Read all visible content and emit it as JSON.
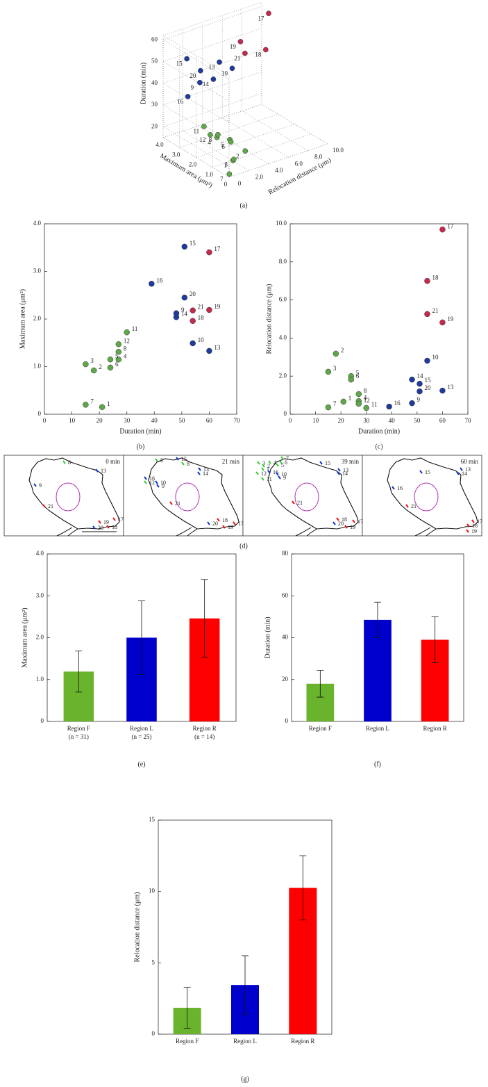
{
  "chart_data": [
    {
      "type": "scatter3d",
      "panel_label": "(a)",
      "xlabel": "Relocation distance (μm)",
      "ylabel": "Maximum area (μm²)",
      "zlabel": "Duration (min)",
      "labels": [
        "1",
        "2",
        "3",
        "4",
        "5",
        "6",
        "7",
        "8",
        "9",
        "10",
        "11",
        "12",
        "13",
        "14",
        "15",
        "16",
        "17",
        "18",
        "19",
        "20",
        "21"
      ],
      "x": [
        0.66,
        3.18,
        2.23,
        0.69,
        2.0,
        1.82,
        0.36,
        1.06,
        0.58,
        2.81,
        0.33,
        0.55,
        1.24,
        1.82,
        1.6,
        0.4,
        9.7,
        7.0,
        4.82,
        1.2,
        5.26
      ],
      "y": [
        0.15,
        0.92,
        1.05,
        1.15,
        1.15,
        0.98,
        0.2,
        1.31,
        2.12,
        1.49,
        1.72,
        1.47,
        1.33,
        2.04,
        3.52,
        2.74,
        3.4,
        1.96,
        2.19,
        2.45,
        2.18
      ],
      "z": [
        21,
        18,
        15,
        27,
        24,
        24,
        15,
        27,
        48,
        54,
        30,
        27,
        60,
        48,
        51,
        39,
        60,
        54,
        60,
        51,
        54
      ],
      "colors": [
        "#5fa84a",
        "#5fa84a",
        "#5fa84a",
        "#5fa84a",
        "#5fa84a",
        "#5fa84a",
        "#5fa84a",
        "#5fa84a",
        "#1f3c9c",
        "#1f3c9c",
        "#5fa84a",
        "#5fa84a",
        "#1f3c9c",
        "#1f3c9c",
        "#1f3c9c",
        "#1f3c9c",
        "#c42a4e",
        "#c42a4e",
        "#c42a4e",
        "#1f3c9c",
        "#c42a4e"
      ],
      "xlim": [
        0,
        10
      ],
      "xticks": [
        0,
        {
          "value": 2,
          "label": "2.0"
        },
        {
          "value": 4,
          "label": "4.0"
        },
        {
          "value": 6,
          "label": "6.0"
        },
        {
          "value": 8,
          "label": "8.0"
        },
        {
          "value": 10,
          "label": "10.0"
        }
      ],
      "ylim": [
        0,
        4
      ],
      "yticks": [
        0,
        {
          "value": 1,
          "label": "1.0"
        },
        {
          "value": 2,
          "label": "2.0"
        },
        {
          "value": 3,
          "label": "3.0"
        },
        {
          "value": 4,
          "label": "4.0"
        }
      ],
      "zlim": [
        15,
        62
      ],
      "zticks": [
        20,
        30,
        40,
        50,
        60
      ],
      "grid": true
    },
    {
      "type": "scatter",
      "panel_label": "(b)",
      "xlabel": "Duration (min)",
      "ylabel": "Maximum area (μm²)",
      "labels": [
        "1",
        "2",
        "3",
        "4",
        "5",
        "6",
        "7",
        "8",
        "9",
        "10",
        "11",
        "12",
        "13",
        "14",
        "15",
        "16",
        "17",
        "18",
        "19",
        "20",
        "21"
      ],
      "x": [
        21,
        18,
        15,
        27,
        24,
        24,
        15,
        27,
        48,
        54,
        30,
        27,
        60,
        48,
        51,
        39,
        60,
        54,
        60,
        51,
        54
      ],
      "y": [
        0.15,
        0.92,
        1.05,
        1.15,
        1.15,
        0.98,
        0.2,
        1.31,
        2.12,
        1.49,
        1.72,
        1.47,
        1.33,
        2.04,
        3.52,
        2.74,
        3.4,
        1.96,
        2.19,
        2.45,
        2.18
      ],
      "colors": [
        "#5fa84a",
        "#5fa84a",
        "#5fa84a",
        "#5fa84a",
        "#5fa84a",
        "#5fa84a",
        "#5fa84a",
        "#5fa84a",
        "#1f3c9c",
        "#1f3c9c",
        "#5fa84a",
        "#5fa84a",
        "#1f3c9c",
        "#1f3c9c",
        "#1f3c9c",
        "#1f3c9c",
        "#c42a4e",
        "#c42a4e",
        "#c42a4e",
        "#1f3c9c",
        "#c42a4e"
      ],
      "xlim": [
        0,
        70
      ],
      "xticks": [
        0,
        10,
        20,
        30,
        40,
        50,
        60,
        70
      ],
      "ylim": [
        0,
        4
      ],
      "yticks": [
        0,
        {
          "value": 1,
          "label": "1.0"
        },
        {
          "value": 2,
          "label": "2.0"
        },
        {
          "value": 3,
          "label": "3.0"
        },
        {
          "value": 4,
          "label": "4.0"
        }
      ]
    },
    {
      "type": "scatter",
      "panel_label": "(c)",
      "xlabel": "Duration (min)",
      "ylabel": "Relocation distance (μm)",
      "labels": [
        "1",
        "2",
        "3",
        "4",
        "5",
        "6",
        "7",
        "8",
        "9",
        "10",
        "11",
        "12",
        "13",
        "14",
        "15",
        "16",
        "17",
        "18",
        "19",
        "20",
        "21"
      ],
      "x": [
        21,
        18,
        15,
        27,
        24,
        24,
        15,
        27,
        48,
        54,
        30,
        27,
        60,
        48,
        51,
        39,
        60,
        54,
        60,
        51,
        54
      ],
      "y": [
        0.66,
        3.18,
        2.23,
        0.69,
        2.0,
        1.82,
        0.36,
        1.06,
        0.58,
        2.81,
        0.33,
        0.55,
        1.24,
        1.82,
        1.6,
        0.4,
        9.7,
        7.0,
        4.82,
        1.2,
        5.26
      ],
      "colors": [
        "#5fa84a",
        "#5fa84a",
        "#5fa84a",
        "#5fa84a",
        "#5fa84a",
        "#5fa84a",
        "#5fa84a",
        "#5fa84a",
        "#1f3c9c",
        "#1f3c9c",
        "#5fa84a",
        "#5fa84a",
        "#1f3c9c",
        "#1f3c9c",
        "#1f3c9c",
        "#1f3c9c",
        "#c42a4e",
        "#c42a4e",
        "#c42a4e",
        "#1f3c9c",
        "#c42a4e"
      ],
      "xlim": [
        0,
        70
      ],
      "xticks": [
        0,
        10,
        20,
        30,
        40,
        50,
        60,
        70
      ],
      "ylim": [
        0,
        10
      ],
      "yticks": [
        0,
        {
          "value": 2,
          "label": "2.0"
        },
        {
          "value": 4,
          "label": "4.0"
        },
        {
          "value": 6,
          "label": "6.0"
        },
        {
          "value": 8,
          "label": "8.0"
        },
        {
          "value": 10,
          "label": "10.0"
        }
      ]
    },
    {
      "type": "frames",
      "panel_label": "(d)",
      "frames": [
        {
          "time": "0 min",
          "labels": [
            "8",
            "13",
            "9",
            "21",
            "19",
            "17",
            "20",
            "18"
          ],
          "colors": [
            "#33cc33",
            "#1133cc",
            "#1133cc",
            "#ee1111",
            "#ee1111",
            "#ee1111",
            "#1133cc",
            "#ee1111"
          ]
        },
        {
          "time": "21 min",
          "labels": [
            "5",
            "15",
            "8",
            "16",
            "12",
            "10",
            "9",
            "13",
            "14",
            "21",
            "18",
            "20",
            "17",
            "19"
          ],
          "colors": [
            "#33cc33",
            "#1133cc",
            "#33cc33",
            "#1133cc",
            "#33cc33",
            "#1133cc",
            "#1133cc",
            "#1133cc",
            "#1133cc",
            "#ee1111",
            "#ee1111",
            "#1133cc",
            "#ee1111",
            "#ee1111"
          ]
        },
        {
          "time": "39 min",
          "labels": [
            "7",
            "6",
            "3",
            "4",
            "2",
            "5",
            "1",
            "16",
            "12",
            "10",
            "9",
            "11",
            "15",
            "13",
            "14",
            "21",
            "18",
            "17",
            "20",
            "19"
          ],
          "colors": [
            "#33cc33",
            "#33cc33",
            "#33cc33",
            "#33cc33",
            "#33cc33",
            "#33cc33",
            "#33cc33",
            "#1133cc",
            "#33cc33",
            "#1133cc",
            "#1133cc",
            "#33cc33",
            "#1133cc",
            "#1133cc",
            "#1133cc",
            "#ee1111",
            "#ee1111",
            "#ee1111",
            "#1133cc",
            "#ee1111"
          ]
        },
        {
          "time": "60 min",
          "labels": [
            "15",
            "16",
            "13",
            "14",
            "21",
            "17",
            "18",
            "19"
          ],
          "colors": [
            "#1133cc",
            "#1133cc",
            "#1133cc",
            "#1133cc",
            "#ee1111",
            "#ee1111",
            "#ee1111",
            "#ee1111"
          ]
        }
      ]
    },
    {
      "type": "bar",
      "panel_label": "(e)",
      "ylabel": "Maximum area (μm²)",
      "categories": [
        "Region F",
        "Region L",
        "Region R"
      ],
      "category_notes": [
        "(n = 31)",
        "(n = 25)",
        "(n = 14)"
      ],
      "values": [
        1.19,
        2.0,
        2.46
      ],
      "errors": [
        0.49,
        0.88,
        0.93
      ],
      "colors": [
        "#6ab42d",
        "#0000cc",
        "#ff0000"
      ],
      "ylim": [
        0,
        4
      ],
      "yticks": [
        0,
        {
          "value": 1,
          "label": "1.0"
        },
        {
          "value": 2,
          "label": "2.0"
        },
        {
          "value": 3,
          "label": "3.0"
        },
        {
          "value": 4,
          "label": "4.0"
        }
      ]
    },
    {
      "type": "bar",
      "panel_label": "(f)",
      "ylabel": "Duration (min)",
      "categories": [
        "Region F",
        "Region L",
        "Region R"
      ],
      "values": [
        18,
        48.5,
        39
      ],
      "errors": [
        6.4,
        8.5,
        11
      ],
      "colors": [
        "#6ab42d",
        "#0000cc",
        "#ff0000"
      ],
      "ylim": [
        0,
        80
      ],
      "yticks": [
        0,
        20,
        40,
        60,
        80
      ]
    },
    {
      "type": "bar",
      "panel_label": "(g)",
      "ylabel": "Relocation distance (μm)",
      "categories": [
        "Region F",
        "Region L",
        "Region R"
      ],
      "values": [
        1.85,
        3.45,
        10.25
      ],
      "errors": [
        1.43,
        2.05,
        2.25
      ],
      "colors": [
        "#6ab42d",
        "#0000cc",
        "#ff0000"
      ],
      "ylim": [
        0,
        15
      ],
      "yticks": [
        0,
        5,
        10,
        15
      ]
    }
  ]
}
